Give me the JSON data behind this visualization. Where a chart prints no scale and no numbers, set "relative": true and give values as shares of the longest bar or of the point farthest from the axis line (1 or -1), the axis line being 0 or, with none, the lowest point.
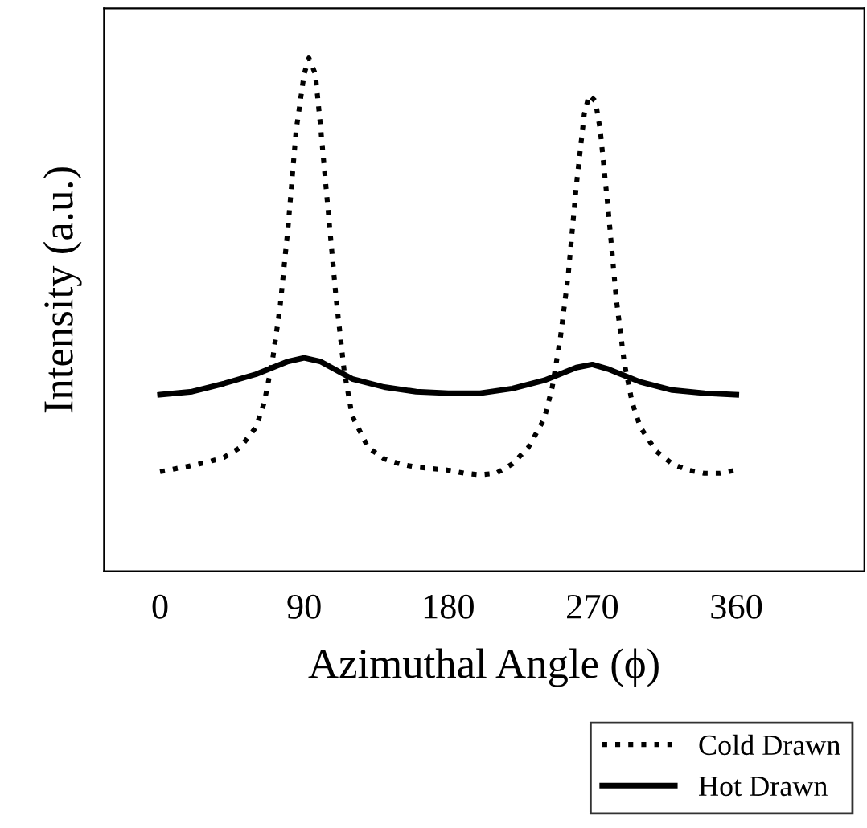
{
  "chart_data": {
    "type": "line",
    "relative": true,
    "xlabel": "Azimuthal Angle (ϕ)",
    "ylabel": "Intensity (a.u.)",
    "xlim": [
      -35,
      440
    ],
    "xticks": [
      0,
      90,
      180,
      270,
      360
    ],
    "tick_labels": "x",
    "grid": false,
    "legend": "bottom right",
    "marker": "none",
    "series": [
      {
        "name": "Cold Drawn",
        "color": "#000000",
        "line_style": "dotted",
        "x": [
          0,
          10,
          20,
          30,
          40,
          50,
          60,
          65,
          70,
          75,
          80,
          85,
          90,
          93,
          97,
          100,
          105,
          110,
          115,
          120,
          130,
          140,
          150,
          160,
          170,
          180,
          190,
          200,
          210,
          220,
          230,
          240,
          245,
          250,
          255,
          260,
          265,
          268,
          272,
          275,
          280,
          285,
          290,
          295,
          300,
          310,
          320,
          330,
          340,
          350,
          360
        ],
        "values": [
          0.194,
          0.2,
          0.206,
          0.213,
          0.222,
          0.241,
          0.281,
          0.328,
          0.406,
          0.516,
          0.672,
          0.859,
          0.969,
          1,
          0.969,
          0.875,
          0.703,
          0.531,
          0.391,
          0.303,
          0.241,
          0.219,
          0.209,
          0.203,
          0.2,
          0.197,
          0.191,
          0.188,
          0.191,
          0.209,
          0.241,
          0.297,
          0.359,
          0.453,
          0.578,
          0.75,
          0.891,
          0.928,
          0.916,
          0.859,
          0.703,
          0.531,
          0.406,
          0.328,
          0.281,
          0.234,
          0.209,
          0.197,
          0.191,
          0.191,
          0.197
        ]
      },
      {
        "name": "Hot Drawn",
        "color": "#000000",
        "line_style": "solid",
        "x": [
          0,
          20,
          40,
          60,
          80,
          90,
          100,
          120,
          140,
          160,
          180,
          200,
          220,
          240,
          260,
          270,
          280,
          300,
          320,
          340,
          360
        ],
        "values": [
          0.344,
          0.35,
          0.366,
          0.384,
          0.409,
          0.416,
          0.409,
          0.375,
          0.359,
          0.35,
          0.347,
          0.347,
          0.356,
          0.372,
          0.397,
          0.403,
          0.394,
          0.369,
          0.353,
          0.347,
          0.344
        ]
      }
    ]
  }
}
